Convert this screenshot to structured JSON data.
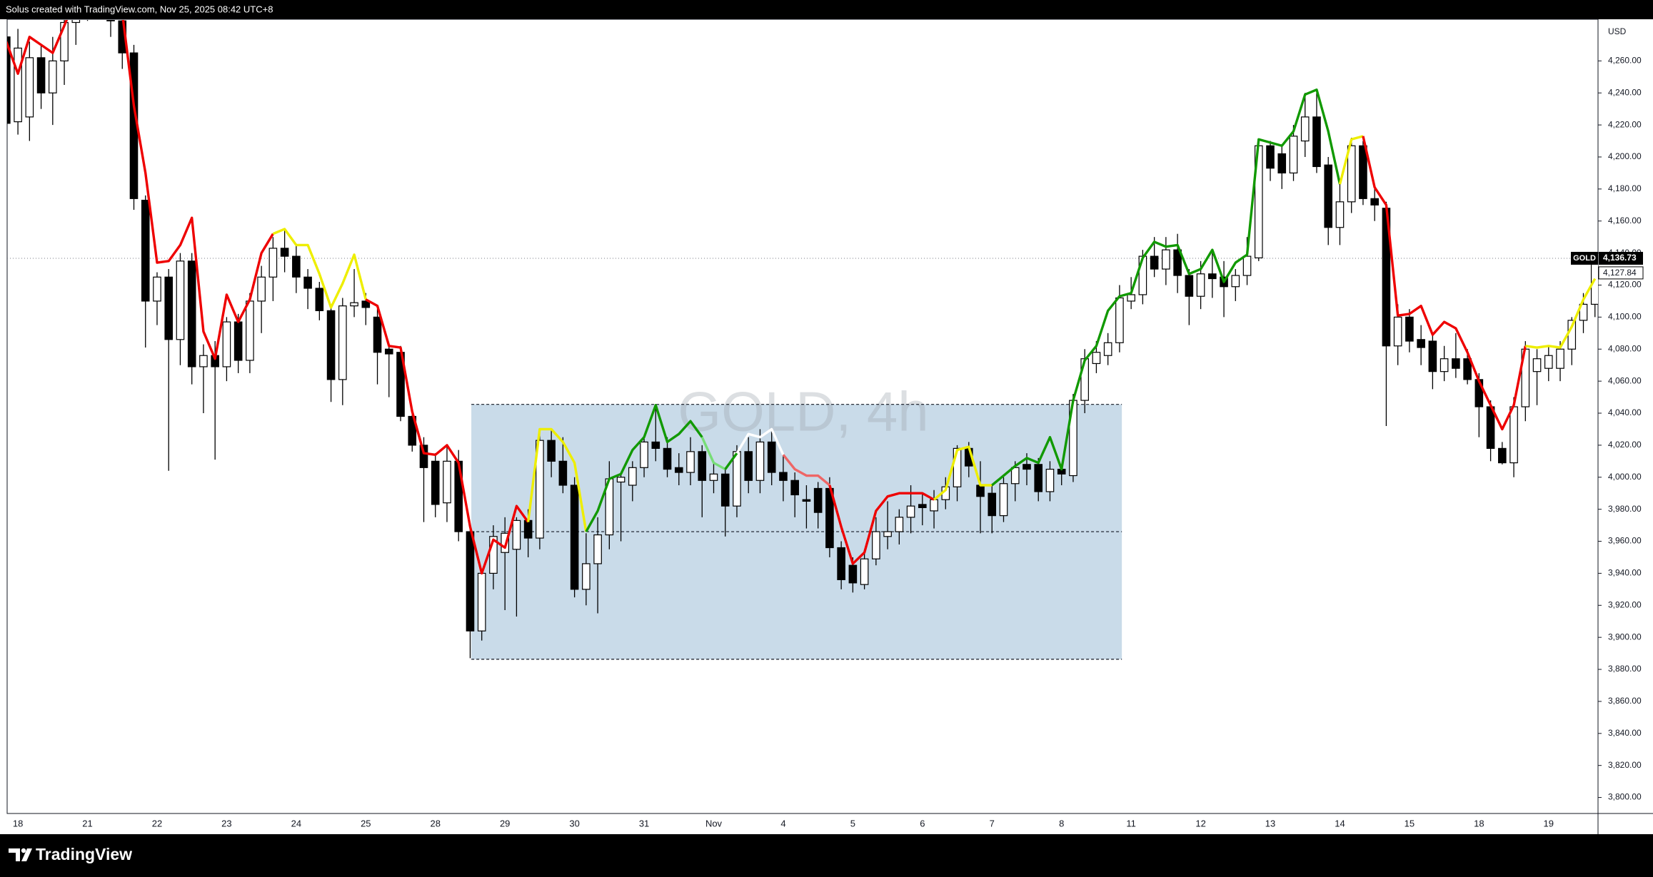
{
  "header": "Solus created with TradingView.com, Nov 25, 2025 08:42 UTC+8",
  "footer_logo": "TradingView",
  "chart_data": {
    "type": "candlestick",
    "watermark": "GOLD, 4h",
    "axis_unit": "USD",
    "categories": [
      null,
      "18",
      null,
      null,
      null,
      null,
      null,
      "21",
      null,
      null,
      null,
      null,
      null,
      "22",
      null,
      null,
      null,
      null,
      null,
      "23",
      null,
      null,
      null,
      null,
      null,
      "24",
      null,
      null,
      null,
      null,
      null,
      "25",
      null,
      null,
      null,
      null,
      null,
      "28",
      null,
      null,
      null,
      null,
      null,
      "29",
      null,
      null,
      null,
      null,
      null,
      "30",
      null,
      null,
      null,
      null,
      null,
      "31",
      null,
      null,
      null,
      null,
      null,
      "Nov",
      null,
      null,
      null,
      null,
      null,
      "4",
      null,
      null,
      null,
      null,
      null,
      "5",
      null,
      null,
      null,
      null,
      null,
      "6",
      null,
      null,
      null,
      null,
      null,
      "7",
      null,
      null,
      null,
      null,
      null,
      "8",
      null,
      null,
      null,
      null,
      null,
      "11",
      null,
      null,
      null,
      null,
      null,
      "12",
      null,
      null,
      null,
      null,
      null,
      "13",
      null,
      null,
      null,
      null,
      null,
      "14",
      null,
      null,
      null,
      null,
      null,
      "15",
      null,
      null,
      null,
      null,
      null,
      "18",
      null,
      null,
      null,
      null,
      null,
      "19",
      null,
      null,
      null,
      null
    ],
    "open": [
      4275,
      4222,
      4225,
      4262,
      4240,
      4260,
      4284,
      4295,
      4300,
      4305,
      4285,
      4265,
      4173,
      4110,
      4125,
      4086,
      4135,
      4069,
      4076,
      4069,
      4097,
      4073,
      4110,
      4125,
      4143,
      4138,
      4125,
      4118,
      4104,
      4061,
      4107,
      4110,
      4100,
      4080,
      4078,
      4038,
      4020,
      4010,
      3984,
      4010,
      3966,
      3904,
      3940,
      3953,
      3955,
      3973,
      3962,
      4023,
      4010,
      3995,
      3930,
      3946,
      3964,
      3997,
      3995,
      4006,
      4022,
      4018,
      4006,
      4003,
      4016,
      3998,
      4002,
      3982,
      4016,
      3998,
      4022,
      4003,
      3998,
      3986,
      3993,
      3993,
      3956,
      3945,
      3933,
      3949,
      3963,
      3966,
      3975,
      3983,
      3979,
      3986,
      3994,
      4018,
      3995,
      3990,
      3976,
      3996,
      4008,
      4008,
      3991,
      4005,
      4001,
      4048,
      4071,
      4076,
      4084,
      4110,
      4114,
      4138,
      4130,
      4142,
      4126,
      4113,
      4127,
      4125,
      4119,
      4126,
      4137,
      4207,
      4202,
      4190,
      4210,
      4225,
      4195,
      4156,
      4172,
      4207,
      4174,
      4168,
      4082,
      4100,
      4086,
      4085,
      4066,
      4074,
      4074,
      4061,
      4044,
      4018,
      4009,
      4044,
      4066,
      4068,
      4068,
      4080,
      4098,
      4108
    ],
    "high": [
      4285,
      4280,
      4272,
      4270,
      4275,
      4290,
      4300,
      4310,
      4315,
      4310,
      4300,
      4270,
      4176,
      4128,
      4130,
      4140,
      4140,
      4083,
      4085,
      4100,
      4102,
      4115,
      4132,
      4150,
      4155,
      4145,
      4130,
      4122,
      4108,
      4112,
      4130,
      4115,
      4105,
      4083,
      4082,
      4042,
      4025,
      4015,
      4020,
      4017,
      3970,
      3940,
      3970,
      3975,
      3975,
      3980,
      4030,
      4030,
      4025,
      4000,
      3965,
      3975,
      4010,
      4002,
      4010,
      4025,
      4045,
      4025,
      4015,
      4025,
      4020,
      4010,
      4005,
      4020,
      4025,
      4030,
      4030,
      4015,
      4003,
      3995,
      3997,
      4000,
      3960,
      3950,
      3955,
      3975,
      3985,
      3980,
      3995,
      3990,
      3992,
      4000,
      4020,
      4022,
      4010,
      3995,
      4000,
      4010,
      4015,
      4012,
      4010,
      4008,
      4052,
      4080,
      4085,
      4090,
      4120,
      4125,
      4142,
      4150,
      4150,
      4152,
      4130,
      4135,
      4140,
      4135,
      4130,
      4150,
      4210,
      4210,
      4208,
      4220,
      4240,
      4240,
      4200,
      4185,
      4212,
      4210,
      4180,
      4172,
      4108,
      4105,
      4095,
      4090,
      4082,
      4090,
      4080,
      4065,
      4048,
      4022,
      4050,
      4085,
      4080,
      4082,
      4085,
      4100,
      4115,
      4137
    ],
    "low": [
      4185,
      4214,
      4210,
      4230,
      4220,
      4245,
      4270,
      4285,
      4290,
      4275,
      4255,
      4167,
      4081,
      4095,
      4004,
      4070,
      4058,
      4040,
      4011,
      4060,
      4065,
      4065,
      4090,
      4110,
      4128,
      4115,
      4105,
      4098,
      4047,
      4045,
      4100,
      4095,
      4058,
      4050,
      4035,
      4016,
      3972,
      3975,
      3972,
      3960,
      3887,
      3898,
      3930,
      3917,
      3913,
      3950,
      3955,
      4000,
      3990,
      3925,
      3920,
      3915,
      3955,
      3960,
      3985,
      4000,
      4010,
      4000,
      3995,
      3995,
      3975,
      3990,
      3963,
      3975,
      3990,
      3990,
      3995,
      3985,
      3975,
      3968,
      3968,
      3950,
      3930,
      3928,
      3930,
      3945,
      3955,
      3958,
      3965,
      3970,
      3968,
      3980,
      3985,
      4000,
      3965,
      3965,
      3972,
      3985,
      3995,
      3985,
      3985,
      3995,
      3997,
      4040,
      4065,
      4070,
      4078,
      4105,
      4108,
      4125,
      4120,
      4115,
      4095,
      4105,
      4112,
      4100,
      4110,
      4120,
      4135,
      4185,
      4180,
      4185,
      4200,
      4190,
      4145,
      4145,
      4165,
      4170,
      4160,
      4032,
      4070,
      4078,
      4070,
      4055,
      4060,
      4062,
      4058,
      4025,
      4010,
      4008,
      4000,
      4035,
      4045,
      4060,
      4060,
      4070,
      4090,
      4100
    ],
    "close": [
      4221,
      4268,
      4262,
      4240,
      4260,
      4284,
      4295,
      4300,
      4305,
      4285,
      4265,
      4174,
      4110,
      4125,
      4086,
      4135,
      4069,
      4076,
      4069,
      4097,
      4073,
      4110,
      4125,
      4143,
      4138,
      4125,
      4118,
      4104,
      4061,
      4107,
      4109,
      4106,
      4078,
      4077,
      4038,
      4020,
      4006,
      3983,
      4010,
      3966,
      3904,
      3940,
      3963,
      3965,
      3973,
      3962,
      4023,
      4010,
      3995,
      3930,
      3946,
      3964,
      3999,
      4000,
      4006,
      4022,
      4018,
      4005,
      4003,
      4016,
      3998,
      4002,
      3982,
      4016,
      3998,
      4022,
      4003,
      3998,
      3989,
      3985,
      3978,
      3956,
      3936,
      3934,
      3949,
      3966,
      3966,
      3975,
      3982,
      3981,
      3986,
      3994,
      4018,
      4007,
      3988,
      3976,
      3996,
      4006,
      4005,
      3991,
      4005,
      4002,
      4048,
      4074,
      4078,
      4084,
      4112,
      4114,
      4138,
      4130,
      4142,
      4126,
      4113,
      4127,
      4124,
      4119,
      4126,
      4138,
      4207,
      4193,
      4190,
      4213,
      4225,
      4194,
      4156,
      4172,
      4207,
      4174,
      4170,
      4082,
      4100,
      4085,
      4081,
      4066,
      4074,
      4068,
      4061,
      4044,
      4018,
      4009,
      4044,
      4080,
      4074,
      4076,
      4080,
      4098,
      4108,
      4136.73
    ],
    "up_color": "#ffffff",
    "down_color": "#000000",
    "line": {
      "values": [
        4272,
        4252,
        4275,
        4270,
        4265,
        4282,
        4300,
        4310,
        4300,
        4290,
        4290,
        4232,
        4190,
        4134,
        4135,
        4145,
        4162,
        4091,
        4074,
        4114,
        4097,
        4111,
        4140,
        4152,
        4155,
        4145,
        4145,
        4127,
        4106,
        4121,
        4139,
        4111,
        4107,
        4082,
        4081,
        4041,
        4015,
        4014,
        4020,
        4009,
        3969,
        3940,
        3961,
        3956,
        3982,
        3972,
        4030,
        4030,
        4022,
        4009,
        3966,
        3979,
        3999,
        4002,
        4017,
        4025,
        4045,
        4022,
        4027,
        4035,
        4025,
        4009,
        4005,
        4015,
        4027,
        4025,
        4030,
        4014,
        4005,
        4001,
        4001,
        3995,
        3969,
        3946,
        3953,
        3979,
        3988,
        3990,
        3990,
        3990,
        3986,
        3992,
        4017,
        4019,
        3995,
        3995,
        4001,
        4007,
        4012,
        4009,
        4025,
        4005,
        4048,
        4073,
        4082,
        4104,
        4113,
        4115,
        4137,
        4147,
        4144,
        4145,
        4127,
        4130,
        4142,
        4122,
        4134,
        4139,
        4211,
        4209,
        4207,
        4216,
        4239,
        4242,
        4216,
        4183,
        4211,
        4213,
        4181,
        4170,
        4101,
        4102,
        4107,
        4089,
        4097,
        4093,
        4078,
        4060,
        4045,
        4030,
        4045,
        4082,
        4081,
        4082,
        4081,
        4094,
        4111,
        4124
      ],
      "colors": [
        "#e00",
        "#e00",
        "#e00",
        "#e00",
        "#e00",
        "#e00",
        "#e00",
        "#e00",
        "#e00",
        "#e00",
        "#e00",
        "#e00",
        "#e00",
        "#e00",
        "#e00",
        "#e00",
        "#e00",
        "#e00",
        "#e00",
        "#e00",
        "#e00",
        "#e00",
        "#e00",
        "#e00",
        "#ee0",
        "#ee0",
        "#ee0",
        "#ee0",
        "#ee0",
        "#ee0",
        "#ee0",
        "#ee0",
        "#e00",
        "#e00",
        "#e00",
        "#e00",
        "#e00",
        "#e00",
        "#e00",
        "#e00",
        "#e00",
        "#e00",
        "#e00",
        "#e00",
        "#e00",
        "#e00",
        "#ee0",
        "#ee0",
        "#ee0",
        "#ee0",
        "#ee0",
        "#190",
        "#190",
        "#190",
        "#190",
        "#190",
        "#190",
        "#190",
        "#190",
        "#190",
        "#190",
        "#7d7",
        "#7d7",
        "#190",
        "#fff",
        "#fff",
        "#fff",
        "#fff",
        "#e66",
        "#e66",
        "#e66",
        "#e66",
        "#e00",
        "#e00",
        "#e00",
        "#e00",
        "#e00",
        "#e00",
        "#e00",
        "#e00",
        "#e00",
        "#ee0",
        "#ee0",
        "#ee0",
        "#ee0",
        "#ee0",
        "#190",
        "#190",
        "#190",
        "#190",
        "#190",
        "#190",
        "#190",
        "#190",
        "#190",
        "#190",
        "#190",
        "#190",
        "#190",
        "#190",
        "#190",
        "#190",
        "#190",
        "#190",
        "#190",
        "#190",
        "#190",
        "#190",
        "#190",
        "#190",
        "#190",
        "#190",
        "#190",
        "#190",
        "#190",
        "#190",
        "#ee0",
        "#ee0",
        "#e00",
        "#e00",
        "#e00",
        "#e00",
        "#e00",
        "#e00",
        "#e00",
        "#e00",
        "#e00",
        "#e00",
        "#e00",
        "#e00",
        "#e00",
        "#e00",
        "#ee0",
        "#ee0",
        "#ee0",
        "#ee0",
        "#ee0",
        "#ee0"
      ]
    },
    "range_box": {
      "x": [
        40.1,
        96.2
      ],
      "top": 4045.5,
      "bottom": 3886.3,
      "mid": 3966,
      "color": "#c9dbe9"
    },
    "ylim": [
      3790,
      4286
    ],
    "yticks": [
      {
        "value": 3800,
        "label": "3,800.00"
      },
      {
        "value": 3820,
        "label": "3,820.00"
      },
      {
        "value": 3840,
        "label": "3,840.00"
      },
      {
        "value": 3860,
        "label": "3,860.00"
      },
      {
        "value": 3880,
        "label": "3,880.00"
      },
      {
        "value": 3900,
        "label": "3,900.00"
      },
      {
        "value": 3920,
        "label": "3,920.00"
      },
      {
        "value": 3940,
        "label": "3,940.00"
      },
      {
        "value": 3960,
        "label": "3,960.00"
      },
      {
        "value": 3980,
        "label": "3,980.00"
      },
      {
        "value": 4000,
        "label": "4,000.00"
      },
      {
        "value": 4020,
        "label": "4,020.00"
      },
      {
        "value": 4040,
        "label": "4,040.00"
      },
      {
        "value": 4060,
        "label": "4,060.00"
      },
      {
        "value": 4080,
        "label": "4,080.00"
      },
      {
        "value": 4100,
        "label": "4,100.00"
      },
      {
        "value": 4120,
        "label": "4,120.00"
      },
      {
        "value": 4140,
        "label": "4,140.00"
      },
      {
        "value": 4160,
        "label": "4,160.00"
      },
      {
        "value": 4180,
        "label": "4,180.00"
      },
      {
        "value": 4200,
        "label": "4,200.00"
      },
      {
        "value": 4220,
        "label": "4,220.00"
      },
      {
        "value": 4240,
        "label": "4,240.00"
      },
      {
        "value": 4260,
        "label": "4,260.00"
      }
    ],
    "grid": false,
    "last_price": {
      "label": "GOLD",
      "value": 4136.73,
      "value_label": "4,136.73"
    },
    "other_price": {
      "value": 4127.84,
      "value_label": "4,127.84"
    }
  }
}
